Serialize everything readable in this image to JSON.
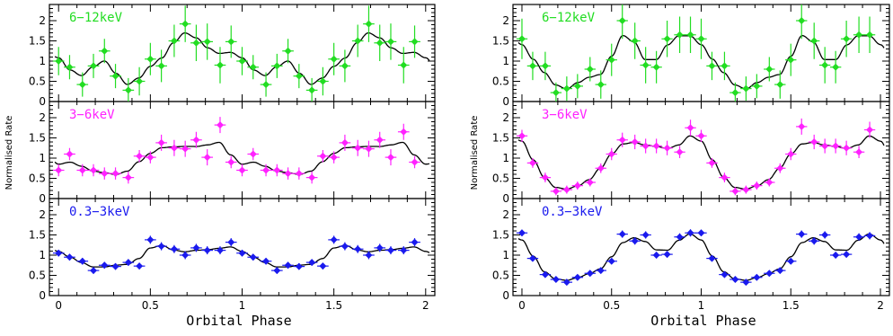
{
  "chart_data": {
    "type": "scatter",
    "xlabel": "Orbital Phase",
    "ylabel": "Normalised Rate",
    "xlim": [
      -0.05,
      2.05
    ],
    "x_ticks": [
      "0",
      "0.5",
      "1",
      "1.5",
      "2"
    ],
    "ylim": [
      0,
      2.4
    ],
    "y_ticks": [
      "0",
      "0.5",
      "1",
      "1.5",
      "2"
    ],
    "colors": {
      "6-12keV": "#22dd22",
      "3-6keV": "#ff22ff",
      "0.3-3keV": "#1a1aee"
    },
    "panels": [
      {
        "column": "left",
        "band": "6-12keV",
        "points": [
          {
            "x": 0.0,
            "y": 1.0,
            "err": 0.35
          },
          {
            "x": 0.06,
            "y": 0.85,
            "err": 0.3
          },
          {
            "x": 0.13,
            "y": 0.42,
            "err": 0.3
          },
          {
            "x": 0.19,
            "y": 0.88,
            "err": 0.3
          },
          {
            "x": 0.25,
            "y": 1.25,
            "err": 0.3
          },
          {
            "x": 0.31,
            "y": 0.63,
            "err": 0.3
          },
          {
            "x": 0.38,
            "y": 0.28,
            "err": 0.3
          },
          {
            "x": 0.44,
            "y": 0.5,
            "err": 0.35
          },
          {
            "x": 0.5,
            "y": 1.05,
            "err": 0.4
          },
          {
            "x": 0.56,
            "y": 0.88,
            "err": 0.4
          },
          {
            "x": 0.63,
            "y": 1.5,
            "err": 0.4
          },
          {
            "x": 0.69,
            "y": 1.92,
            "err": 0.45
          },
          {
            "x": 0.75,
            "y": 1.45,
            "err": 0.45
          },
          {
            "x": 0.81,
            "y": 1.48,
            "err": 0.45
          },
          {
            "x": 0.88,
            "y": 0.9,
            "err": 0.45
          },
          {
            "x": 0.94,
            "y": 1.48,
            "err": 0.4
          },
          {
            "x": 1.0,
            "y": 1.0,
            "err": 0.35
          },
          {
            "x": 1.06,
            "y": 0.85,
            "err": 0.3
          },
          {
            "x": 1.13,
            "y": 0.42,
            "err": 0.3
          },
          {
            "x": 1.19,
            "y": 0.88,
            "err": 0.3
          },
          {
            "x": 1.25,
            "y": 1.25,
            "err": 0.3
          },
          {
            "x": 1.31,
            "y": 0.63,
            "err": 0.3
          },
          {
            "x": 1.38,
            "y": 0.28,
            "err": 0.3
          },
          {
            "x": 1.44,
            "y": 0.5,
            "err": 0.35
          },
          {
            "x": 1.5,
            "y": 1.05,
            "err": 0.4
          },
          {
            "x": 1.56,
            "y": 0.88,
            "err": 0.4
          },
          {
            "x": 1.63,
            "y": 1.5,
            "err": 0.4
          },
          {
            "x": 1.69,
            "y": 1.92,
            "err": 0.45
          },
          {
            "x": 1.75,
            "y": 1.45,
            "err": 0.45
          },
          {
            "x": 1.81,
            "y": 1.48,
            "err": 0.45
          },
          {
            "x": 1.88,
            "y": 0.9,
            "err": 0.45
          },
          {
            "x": 1.94,
            "y": 1.48,
            "err": 0.4
          }
        ]
      },
      {
        "column": "left",
        "band": "3-6keV",
        "points": [
          {
            "x": 0.0,
            "y": 0.7,
            "err": 0.15
          },
          {
            "x": 0.06,
            "y": 1.1,
            "err": 0.15
          },
          {
            "x": 0.13,
            "y": 0.7,
            "err": 0.15
          },
          {
            "x": 0.19,
            "y": 0.7,
            "err": 0.15
          },
          {
            "x": 0.25,
            "y": 0.62,
            "err": 0.15
          },
          {
            "x": 0.31,
            "y": 0.62,
            "err": 0.15
          },
          {
            "x": 0.38,
            "y": 0.52,
            "err": 0.15
          },
          {
            "x": 0.44,
            "y": 1.05,
            "err": 0.15
          },
          {
            "x": 0.5,
            "y": 1.02,
            "err": 0.15
          },
          {
            "x": 0.56,
            "y": 1.38,
            "err": 0.2
          },
          {
            "x": 0.63,
            "y": 1.25,
            "err": 0.2
          },
          {
            "x": 0.69,
            "y": 1.23,
            "err": 0.2
          },
          {
            "x": 0.75,
            "y": 1.45,
            "err": 0.2
          },
          {
            "x": 0.81,
            "y": 1.02,
            "err": 0.2
          },
          {
            "x": 0.88,
            "y": 1.82,
            "err": 0.2
          },
          {
            "x": 0.94,
            "y": 0.9,
            "err": 0.15
          },
          {
            "x": 1.0,
            "y": 0.7,
            "err": 0.15
          },
          {
            "x": 1.06,
            "y": 1.1,
            "err": 0.15
          },
          {
            "x": 1.13,
            "y": 0.7,
            "err": 0.15
          },
          {
            "x": 1.19,
            "y": 0.7,
            "err": 0.15
          },
          {
            "x": 1.25,
            "y": 0.62,
            "err": 0.15
          },
          {
            "x": 1.31,
            "y": 0.62,
            "err": 0.15
          },
          {
            "x": 1.38,
            "y": 0.52,
            "err": 0.15
          },
          {
            "x": 1.44,
            "y": 1.05,
            "err": 0.15
          },
          {
            "x": 1.5,
            "y": 1.02,
            "err": 0.15
          },
          {
            "x": 1.56,
            "y": 1.38,
            "err": 0.2
          },
          {
            "x": 1.63,
            "y": 1.25,
            "err": 0.2
          },
          {
            "x": 1.69,
            "y": 1.23,
            "err": 0.2
          },
          {
            "x": 1.75,
            "y": 1.45,
            "err": 0.2
          },
          {
            "x": 1.81,
            "y": 1.02,
            "err": 0.2
          },
          {
            "x": 1.88,
            "y": 1.65,
            "err": 0.2
          },
          {
            "x": 1.94,
            "y": 0.9,
            "err": 0.15
          }
        ]
      },
      {
        "column": "left",
        "band": "0.3-3keV",
        "points": [
          {
            "x": 0.0,
            "y": 1.05,
            "err": 0.08
          },
          {
            "x": 0.06,
            "y": 0.95,
            "err": 0.08
          },
          {
            "x": 0.13,
            "y": 0.85,
            "err": 0.08
          },
          {
            "x": 0.19,
            "y": 0.62,
            "err": 0.08
          },
          {
            "x": 0.25,
            "y": 0.75,
            "err": 0.08
          },
          {
            "x": 0.31,
            "y": 0.72,
            "err": 0.08
          },
          {
            "x": 0.38,
            "y": 0.82,
            "err": 0.08
          },
          {
            "x": 0.44,
            "y": 0.73,
            "err": 0.08
          },
          {
            "x": 0.5,
            "y": 1.38,
            "err": 0.1
          },
          {
            "x": 0.56,
            "y": 1.22,
            "err": 0.1
          },
          {
            "x": 0.63,
            "y": 1.15,
            "err": 0.1
          },
          {
            "x": 0.69,
            "y": 1.0,
            "err": 0.1
          },
          {
            "x": 0.75,
            "y": 1.18,
            "err": 0.1
          },
          {
            "x": 0.81,
            "y": 1.12,
            "err": 0.1
          },
          {
            "x": 0.88,
            "y": 1.12,
            "err": 0.1
          },
          {
            "x": 0.94,
            "y": 1.32,
            "err": 0.1
          },
          {
            "x": 1.0,
            "y": 1.05,
            "err": 0.08
          },
          {
            "x": 1.06,
            "y": 0.95,
            "err": 0.08
          },
          {
            "x": 1.13,
            "y": 0.85,
            "err": 0.08
          },
          {
            "x": 1.19,
            "y": 0.62,
            "err": 0.08
          },
          {
            "x": 1.25,
            "y": 0.75,
            "err": 0.08
          },
          {
            "x": 1.31,
            "y": 0.72,
            "err": 0.08
          },
          {
            "x": 1.38,
            "y": 0.82,
            "err": 0.08
          },
          {
            "x": 1.44,
            "y": 0.73,
            "err": 0.08
          },
          {
            "x": 1.5,
            "y": 1.38,
            "err": 0.1
          },
          {
            "x": 1.56,
            "y": 1.22,
            "err": 0.1
          },
          {
            "x": 1.63,
            "y": 1.15,
            "err": 0.1
          },
          {
            "x": 1.69,
            "y": 1.0,
            "err": 0.1
          },
          {
            "x": 1.75,
            "y": 1.18,
            "err": 0.1
          },
          {
            "x": 1.81,
            "y": 1.12,
            "err": 0.1
          },
          {
            "x": 1.88,
            "y": 1.12,
            "err": 0.1
          },
          {
            "x": 1.94,
            "y": 1.32,
            "err": 0.1
          }
        ]
      },
      {
        "column": "right",
        "band": "6-12keV",
        "points": [
          {
            "x": 0.0,
            "y": 1.55,
            "err": 0.5
          },
          {
            "x": 0.06,
            "y": 0.88,
            "err": 0.35
          },
          {
            "x": 0.13,
            "y": 0.88,
            "err": 0.35
          },
          {
            "x": 0.19,
            "y": 0.22,
            "err": 0.25
          },
          {
            "x": 0.25,
            "y": 0.32,
            "err": 0.3
          },
          {
            "x": 0.31,
            "y": 0.38,
            "err": 0.3
          },
          {
            "x": 0.38,
            "y": 0.8,
            "err": 0.3
          },
          {
            "x": 0.44,
            "y": 0.42,
            "err": 0.35
          },
          {
            "x": 0.5,
            "y": 1.03,
            "err": 0.4
          },
          {
            "x": 0.56,
            "y": 2.0,
            "err": 0.45
          },
          {
            "x": 0.63,
            "y": 1.5,
            "err": 0.45
          },
          {
            "x": 0.69,
            "y": 0.9,
            "err": 0.45
          },
          {
            "x": 0.75,
            "y": 0.85,
            "err": 0.4
          },
          {
            "x": 0.81,
            "y": 1.55,
            "err": 0.45
          },
          {
            "x": 0.88,
            "y": 1.65,
            "err": 0.45
          },
          {
            "x": 0.94,
            "y": 1.65,
            "err": 0.45
          },
          {
            "x": 1.0,
            "y": 1.55,
            "err": 0.5
          },
          {
            "x": 1.06,
            "y": 0.88,
            "err": 0.35
          },
          {
            "x": 1.13,
            "y": 0.88,
            "err": 0.35
          },
          {
            "x": 1.19,
            "y": 0.22,
            "err": 0.25
          },
          {
            "x": 1.25,
            "y": 0.32,
            "err": 0.3
          },
          {
            "x": 1.31,
            "y": 0.38,
            "err": 0.3
          },
          {
            "x": 1.38,
            "y": 0.8,
            "err": 0.3
          },
          {
            "x": 1.44,
            "y": 0.42,
            "err": 0.35
          },
          {
            "x": 1.5,
            "y": 1.03,
            "err": 0.4
          },
          {
            "x": 1.56,
            "y": 2.0,
            "err": 0.45
          },
          {
            "x": 1.63,
            "y": 1.5,
            "err": 0.45
          },
          {
            "x": 1.69,
            "y": 0.9,
            "err": 0.45
          },
          {
            "x": 1.75,
            "y": 0.85,
            "err": 0.4
          },
          {
            "x": 1.81,
            "y": 1.55,
            "err": 0.45
          },
          {
            "x": 1.88,
            "y": 1.65,
            "err": 0.45
          },
          {
            "x": 1.94,
            "y": 1.65,
            "err": 0.45
          }
        ]
      },
      {
        "column": "right",
        "band": "3-6keV",
        "points": [
          {
            "x": 0.0,
            "y": 1.55,
            "err": 0.15
          },
          {
            "x": 0.06,
            "y": 0.88,
            "err": 0.12
          },
          {
            "x": 0.13,
            "y": 0.52,
            "err": 0.12
          },
          {
            "x": 0.19,
            "y": 0.18,
            "err": 0.1
          },
          {
            "x": 0.25,
            "y": 0.22,
            "err": 0.1
          },
          {
            "x": 0.31,
            "y": 0.32,
            "err": 0.1
          },
          {
            "x": 0.38,
            "y": 0.4,
            "err": 0.1
          },
          {
            "x": 0.44,
            "y": 0.75,
            "err": 0.12
          },
          {
            "x": 0.5,
            "y": 1.1,
            "err": 0.15
          },
          {
            "x": 0.56,
            "y": 1.45,
            "err": 0.18
          },
          {
            "x": 0.63,
            "y": 1.4,
            "err": 0.18
          },
          {
            "x": 0.69,
            "y": 1.3,
            "err": 0.18
          },
          {
            "x": 0.75,
            "y": 1.3,
            "err": 0.18
          },
          {
            "x": 0.81,
            "y": 1.25,
            "err": 0.18
          },
          {
            "x": 0.88,
            "y": 1.15,
            "err": 0.15
          },
          {
            "x": 0.94,
            "y": 1.75,
            "err": 0.2
          },
          {
            "x": 1.0,
            "y": 1.55,
            "err": 0.15
          },
          {
            "x": 1.06,
            "y": 0.88,
            "err": 0.12
          },
          {
            "x": 1.13,
            "y": 0.52,
            "err": 0.12
          },
          {
            "x": 1.19,
            "y": 0.18,
            "err": 0.1
          },
          {
            "x": 1.25,
            "y": 0.22,
            "err": 0.1
          },
          {
            "x": 1.31,
            "y": 0.32,
            "err": 0.1
          },
          {
            "x": 1.38,
            "y": 0.4,
            "err": 0.1
          },
          {
            "x": 1.44,
            "y": 0.75,
            "err": 0.12
          },
          {
            "x": 1.5,
            "y": 1.1,
            "err": 0.15
          },
          {
            "x": 1.56,
            "y": 1.78,
            "err": 0.2
          },
          {
            "x": 1.63,
            "y": 1.4,
            "err": 0.18
          },
          {
            "x": 1.69,
            "y": 1.3,
            "err": 0.18
          },
          {
            "x": 1.75,
            "y": 1.3,
            "err": 0.18
          },
          {
            "x": 1.81,
            "y": 1.25,
            "err": 0.18
          },
          {
            "x": 1.88,
            "y": 1.15,
            "err": 0.15
          },
          {
            "x": 1.94,
            "y": 1.7,
            "err": 0.2
          }
        ]
      },
      {
        "column": "right",
        "band": "0.3-3keV",
        "points": [
          {
            "x": 0.0,
            "y": 1.55,
            "err": 0.08
          },
          {
            "x": 0.06,
            "y": 0.92,
            "err": 0.06
          },
          {
            "x": 0.13,
            "y": 0.52,
            "err": 0.05
          },
          {
            "x": 0.19,
            "y": 0.4,
            "err": 0.05
          },
          {
            "x": 0.25,
            "y": 0.33,
            "err": 0.05
          },
          {
            "x": 0.31,
            "y": 0.45,
            "err": 0.05
          },
          {
            "x": 0.38,
            "y": 0.55,
            "err": 0.05
          },
          {
            "x": 0.44,
            "y": 0.62,
            "err": 0.06
          },
          {
            "x": 0.5,
            "y": 0.85,
            "err": 0.07
          },
          {
            "x": 0.56,
            "y": 1.52,
            "err": 0.09
          },
          {
            "x": 0.63,
            "y": 1.35,
            "err": 0.09
          },
          {
            "x": 0.69,
            "y": 1.5,
            "err": 0.09
          },
          {
            "x": 0.75,
            "y": 1.0,
            "err": 0.08
          },
          {
            "x": 0.81,
            "y": 1.02,
            "err": 0.08
          },
          {
            "x": 0.88,
            "y": 1.45,
            "err": 0.09
          },
          {
            "x": 0.94,
            "y": 1.55,
            "err": 0.09
          },
          {
            "x": 1.0,
            "y": 1.55,
            "err": 0.08
          },
          {
            "x": 1.06,
            "y": 0.92,
            "err": 0.06
          },
          {
            "x": 1.13,
            "y": 0.52,
            "err": 0.05
          },
          {
            "x": 1.19,
            "y": 0.4,
            "err": 0.05
          },
          {
            "x": 1.25,
            "y": 0.33,
            "err": 0.05
          },
          {
            "x": 1.31,
            "y": 0.45,
            "err": 0.05
          },
          {
            "x": 1.38,
            "y": 0.55,
            "err": 0.05
          },
          {
            "x": 1.44,
            "y": 0.62,
            "err": 0.06
          },
          {
            "x": 1.5,
            "y": 0.85,
            "err": 0.07
          },
          {
            "x": 1.56,
            "y": 1.52,
            "err": 0.09
          },
          {
            "x": 1.63,
            "y": 1.35,
            "err": 0.09
          },
          {
            "x": 1.69,
            "y": 1.5,
            "err": 0.09
          },
          {
            "x": 1.75,
            "y": 1.0,
            "err": 0.08
          },
          {
            "x": 1.81,
            "y": 1.02,
            "err": 0.08
          },
          {
            "x": 1.88,
            "y": 1.45,
            "err": 0.09
          },
          {
            "x": 1.94,
            "y": 1.48,
            "err": 0.09
          }
        ]
      }
    ]
  },
  "labels": {
    "band_6_12": "6−12keV",
    "band_3_6": "3−6keV",
    "band_03_3": "0.3−3keV"
  }
}
